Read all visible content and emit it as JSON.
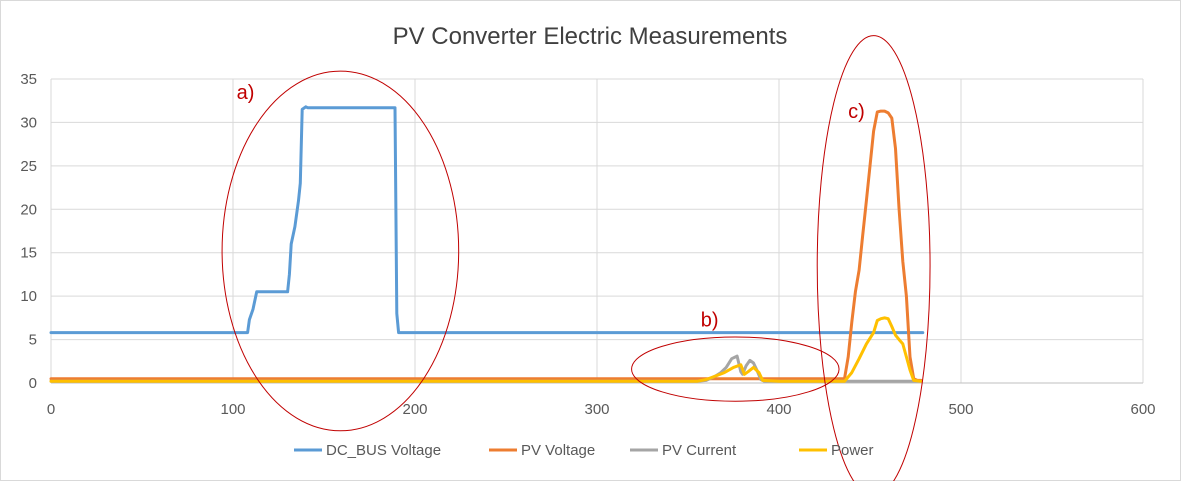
{
  "chart_data": {
    "type": "line",
    "title": "PV Converter Electric Measurements",
    "xlabel": "",
    "ylabel": "",
    "xlim": [
      0,
      600
    ],
    "ylim": [
      0,
      35
    ],
    "x_ticks": [
      "0",
      "100",
      "200",
      "300",
      "400",
      "500",
      "600"
    ],
    "y_ticks": [
      "0",
      "5",
      "10",
      "15",
      "20",
      "25",
      "30",
      "35"
    ],
    "grid": true,
    "legend_position": "bottom",
    "series": [
      {
        "name": "DC_BUS Voltage",
        "color": "#5b9bd5",
        "x": [
          0,
          108,
          109,
          111,
          113,
          115,
          117,
          130,
          131,
          132,
          134,
          136,
          137,
          138,
          140,
          141,
          143,
          150,
          160,
          170,
          180,
          182,
          185,
          189,
          190,
          191,
          430,
          432,
          434,
          436,
          438,
          440,
          442,
          444,
          446,
          448,
          450,
          452,
          454,
          456,
          458,
          460,
          462,
          464,
          466,
          468,
          470,
          472,
          474,
          476,
          479
        ],
        "y": [
          5.8,
          5.8,
          7.3,
          8.5,
          10.5,
          10.5,
          10.5,
          10.5,
          12.5,
          16,
          18,
          21,
          23,
          31.5,
          31.8,
          31.7,
          31.7,
          31.7,
          31.7,
          31.7,
          31.7,
          31.7,
          31.7,
          31.7,
          8,
          5.8,
          5.8,
          5.8,
          5.8,
          5.8,
          5.8,
          5.8,
          5.8,
          5.8,
          5.8,
          5.8,
          5.8,
          5.8,
          5.8,
          5.8,
          5.8,
          5.8,
          5.8,
          5.8,
          5.8,
          5.8,
          5.8,
          5.8,
          5.8,
          5.8,
          5.8
        ]
      },
      {
        "name": "PV Voltage",
        "color": "#ed7d31",
        "x": [
          0,
          100,
          200,
          300,
          400,
          430,
          436,
          438,
          440,
          442,
          444,
          446,
          448,
          450,
          452,
          454,
          456,
          458,
          460,
          462,
          464,
          466,
          468,
          470,
          472,
          474,
          476,
          478
        ],
        "y": [
          0.5,
          0.5,
          0.5,
          0.5,
          0.5,
          0.5,
          0.5,
          3,
          7,
          10.5,
          13,
          17,
          21,
          25,
          29,
          31.2,
          31.3,
          31.3,
          31.1,
          30.5,
          27,
          20,
          14,
          10,
          3,
          0.5,
          0.3,
          0.3
        ]
      },
      {
        "name": "PV Current",
        "color": "#a5a5a5",
        "x": [
          0,
          100,
          200,
          300,
          355,
          360,
          365,
          368,
          371,
          374,
          377,
          379,
          380,
          382,
          384,
          386,
          388,
          390,
          392,
          400,
          430,
          478
        ],
        "y": [
          0.2,
          0.2,
          0.2,
          0.2,
          0.2,
          0.3,
          0.8,
          1.2,
          1.8,
          2.8,
          3.1,
          1.3,
          1.0,
          2.0,
          2.6,
          2.3,
          1.4,
          0.4,
          0.2,
          0.2,
          0.2,
          0.2
        ]
      },
      {
        "name": "Power",
        "color": "#ffc000",
        "x": [
          0,
          100,
          200,
          300,
          355,
          360,
          365,
          370,
          375,
          379,
          381,
          383,
          386,
          389,
          391,
          400,
          436,
          440,
          444,
          448,
          452,
          454,
          456,
          458,
          460,
          462,
          464,
          466,
          468,
          470,
          472,
          474,
          478
        ],
        "y": [
          0.2,
          0.2,
          0.2,
          0.2,
          0.2,
          0.4,
          0.8,
          1.2,
          1.8,
          2.1,
          1.0,
          1.3,
          1.8,
          1.2,
          0.3,
          0.2,
          0.2,
          1.2,
          2.8,
          4.5,
          5.8,
          7.2,
          7.4,
          7.5,
          7.4,
          6.5,
          5.5,
          5.0,
          4.5,
          3.0,
          1.5,
          0.3,
          0.2
        ]
      }
    ],
    "annotations": [
      {
        "label": "a)",
        "color": "#c00000"
      },
      {
        "label": "b)",
        "color": "#c00000"
      },
      {
        "label": "c)",
        "color": "#c00000"
      }
    ]
  }
}
